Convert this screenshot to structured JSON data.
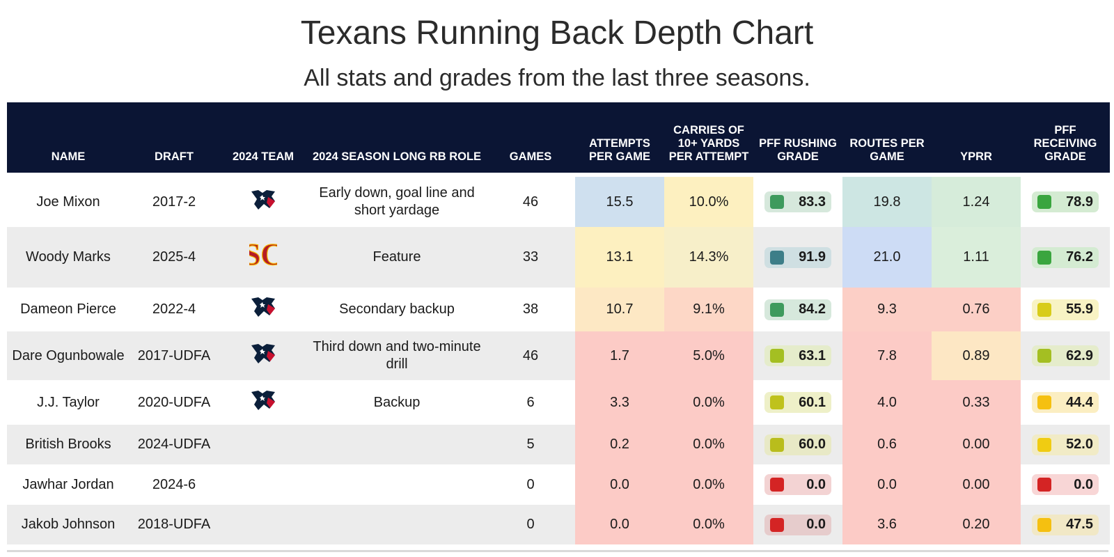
{
  "title": "Texans Running Back Depth Chart",
  "subtitle": "All stats and grades from the last three seasons.",
  "columns": [
    "NAME",
    "DRAFT",
    "2024 TEAM",
    "2024 SEASON LONG RB ROLE",
    "GAMES",
    "ATTEMPTS PER GAME",
    "CARRIES OF 10+ YARDS PER ATTEMPT",
    "PFF RUSHING GRADE",
    "ROUTES PER GAME",
    "YPRR",
    "PFF RECEIVING GRADE"
  ],
  "rows": [
    {
      "name": "Joe Mixon",
      "draft": "2017-2",
      "team_logo": "texans-logo",
      "role": "Early down, goal line and short yardage",
      "games": "46",
      "att": "15.5",
      "att_bg": "#cfe0ef",
      "carries": "10.0%",
      "carries_bg": "#fdf0c0",
      "rush": "83.3",
      "rush_box": "#d6e8dc",
      "rush_sq": "#3e9a5d",
      "routes": "19.8",
      "routes_bg": "#cde6e3",
      "yprr": "1.24",
      "yprr_bg": "#d6ecda",
      "rec": "78.9",
      "rec_box": "#d4ebd2",
      "rec_sq": "#3aa53f"
    },
    {
      "name": "Woody Marks",
      "draft": "2025-4",
      "team_logo": "usc-logo",
      "role": "Feature",
      "games": "33",
      "att": "13.1",
      "att_bg": "#fdf0c0",
      "carries": "14.3%",
      "carries_bg": "#f7efc9",
      "rush": "91.9",
      "rush_box": "#cfdfe2",
      "rush_sq": "#3d7e88",
      "routes": "21.0",
      "routes_bg": "#cddcf5",
      "yprr": "1.11",
      "yprr_bg": "#daeedb",
      "rec": "76.2",
      "rec_box": "#d4ebd2",
      "rec_sq": "#3aa53f"
    },
    {
      "name": "Dameon Pierce",
      "draft": "2022-4",
      "team_logo": "texans-logo",
      "role": "Secondary backup",
      "games": "38",
      "att": "10.7",
      "att_bg": "#fde8c4",
      "carries": "9.1%",
      "carries_bg": "#fdd7c6",
      "rush": "84.2",
      "rush_box": "#d6e8dc",
      "rush_sq": "#3e9a5d",
      "routes": "9.3",
      "routes_bg": "#fccfc6",
      "yprr": "0.76",
      "yprr_bg": "#fccfc6",
      "rec": "55.9",
      "rec_box": "#f8f3c4",
      "rec_sq": "#d8cc1a"
    },
    {
      "name": "Dare Ogunbowale",
      "draft": "2017-UDFA",
      "team_logo": "texans-logo",
      "role": "Third down and two-minute drill",
      "games": "46",
      "att": "1.7",
      "att_bg": "#fccbc6",
      "carries": "5.0%",
      "carries_bg": "#fccbc6",
      "rush": "63.1",
      "rush_box": "#e5eccb",
      "rush_sq": "#a4bf22",
      "routes": "7.8",
      "routes_bg": "#fccbc6",
      "yprr": "0.89",
      "yprr_bg": "#fde7c4",
      "rec": "62.9",
      "rec_box": "#e5eccb",
      "rec_sq": "#a4bf22"
    },
    {
      "name": "J.J. Taylor",
      "draft": "2020-UDFA",
      "team_logo": "texans-logo",
      "role": "Backup",
      "games": "6",
      "att": "3.3",
      "att_bg": "#fccbc6",
      "carries": "0.0%",
      "carries_bg": "#fccbc6",
      "rush": "60.1",
      "rush_box": "#eef0c8",
      "rush_sq": "#bfc21c",
      "routes": "4.0",
      "routes_bg": "#fccbc6",
      "yprr": "0.33",
      "yprr_bg": "#fccbc6",
      "rec": "44.4",
      "rec_box": "#fbeec2",
      "rec_sq": "#f5c010"
    },
    {
      "name": "British Brooks",
      "draft": "2024-UDFA",
      "team_logo": "",
      "role": "",
      "games": "5",
      "att": "0.2",
      "att_bg": "#fccbc6",
      "carries": "0.0%",
      "carries_bg": "#fccbc6",
      "rush": "60.0",
      "rush_box": "#e8e9c6",
      "rush_sq": "#b9bd1c",
      "routes": "0.6",
      "routes_bg": "#fccbc6",
      "yprr": "0.00",
      "yprr_bg": "#fccbc6",
      "rec": "52.0",
      "rec_box": "#f1ebc6",
      "rec_sq": "#f0cc12"
    },
    {
      "name": "Jawhar Jordan",
      "draft": "2024-6",
      "team_logo": "",
      "role": "",
      "games": "0",
      "att": "0.0",
      "att_bg": "#fccbc6",
      "carries": "0.0%",
      "carries_bg": "#fccbc6",
      "rush": "0.0",
      "rush_box": "#f3d3d3",
      "rush_sq": "#d42424",
      "routes": "0.0",
      "routes_bg": "#fccbc6",
      "yprr": "0.00",
      "yprr_bg": "#fccbc6",
      "rec": "0.0",
      "rec_box": "#f8d6d6",
      "rec_sq": "#d42424"
    },
    {
      "name": "Jakob Johnson",
      "draft": "2018-UDFA",
      "team_logo": "",
      "role": "",
      "games": "0",
      "att": "0.0",
      "att_bg": "#fccbc6",
      "carries": "0.0%",
      "carries_bg": "#fccbc6",
      "rush": "0.0",
      "rush_box": "#e6cccc",
      "rush_sq": "#d42424",
      "routes": "3.6",
      "routes_bg": "#fccbc6",
      "yprr": "0.20",
      "yprr_bg": "#fccbc6",
      "rec": "47.5",
      "rec_box": "#f1e8c6",
      "rec_sq": "#f5c010"
    }
  ]
}
